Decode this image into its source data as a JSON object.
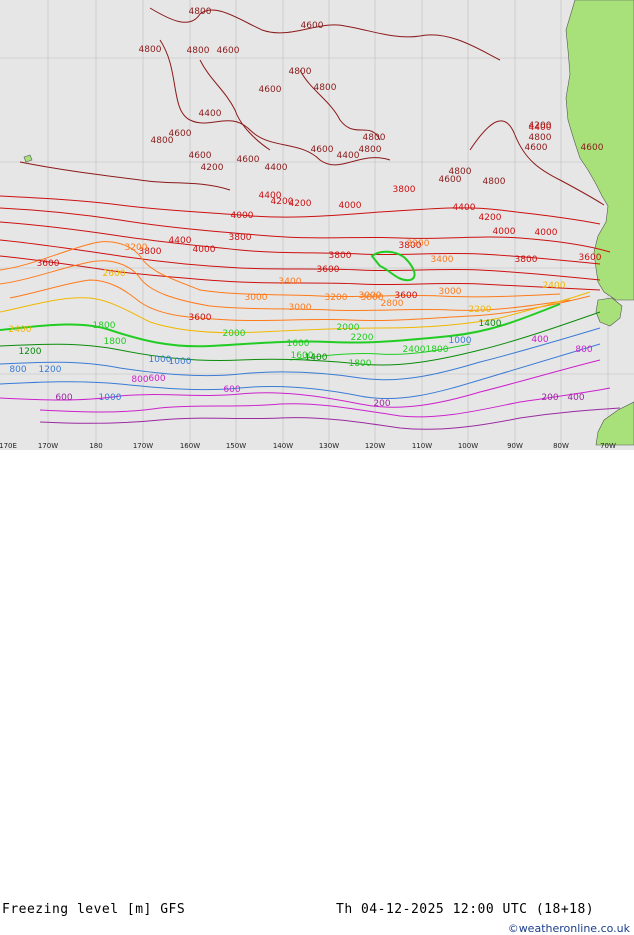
{
  "title": "Freezing level [m] GFS",
  "valid_time": "Th 04-12-2025 12:00 UTC (18+18)",
  "credit": "©weatheronline.co.uk",
  "longitude_labels": [
    "170E",
    "170W",
    "180",
    "170W",
    "160W",
    "150W",
    "140W",
    "130W",
    "120W",
    "110W",
    "100W",
    "90W",
    "80W",
    "70W"
  ],
  "colors": {
    "ocean": "#e6e6e6",
    "land": "#a8e07a",
    "c4800": "#8b1a1a",
    "c4000": "#cc1010",
    "c3000": "#ff7a1a",
    "c2400": "#f0b800",
    "c1800": "#22cc22",
    "c1200": "#0a8c0a",
    "c1000": "#3a7bd5",
    "c600": "#cc22cc",
    "c200": "#9a2aa0"
  },
  "contour_labels": [
    {
      "text": "4800",
      "c": "c4800"
    },
    {
      "text": "4600",
      "c": "c4800"
    },
    {
      "text": "4800",
      "c": "c4800"
    },
    {
      "text": "4800",
      "c": "c4800"
    },
    {
      "text": "4600",
      "c": "c4800"
    },
    {
      "text": "4800",
      "c": "c4800"
    },
    {
      "text": "4800",
      "c": "c4800"
    },
    {
      "text": "4600",
      "c": "c4800"
    },
    {
      "text": "4400",
      "c": "c4800"
    },
    {
      "text": "4600",
      "c": "c4800"
    },
    {
      "text": "4800",
      "c": "c4800"
    },
    {
      "text": "4800",
      "c": "c4800"
    },
    {
      "text": "4600",
      "c": "c4800"
    },
    {
      "text": "4600",
      "c": "c4800"
    },
    {
      "text": "4200",
      "c": "c4800"
    },
    {
      "text": "4400",
      "c": "c4800"
    },
    {
      "text": "4600",
      "c": "c4800"
    },
    {
      "text": "4800",
      "c": "c4800"
    },
    {
      "text": "4800",
      "c": "c4800"
    },
    {
      "text": "4800",
      "c": "c4800"
    },
    {
      "text": "4600",
      "c": "c4800"
    },
    {
      "text": "4400",
      "c": "c4800"
    },
    {
      "text": "4200",
      "c": "c4800"
    },
    {
      "text": "4800",
      "c": "c4800"
    },
    {
      "text": "4600",
      "c": "c4800"
    },
    {
      "text": "4600",
      "c": "c4800"
    },
    {
      "text": "4000",
      "c": "c4000"
    },
    {
      "text": "4200",
      "c": "c4000"
    },
    {
      "text": "4400",
      "c": "c4000"
    },
    {
      "text": "4400",
      "c": "c4000"
    },
    {
      "text": "4200",
      "c": "c4000"
    },
    {
      "text": "4000",
      "c": "c4000"
    },
    {
      "text": "4000",
      "c": "c4000"
    },
    {
      "text": "3800",
      "c": "c4000"
    },
    {
      "text": "3800",
      "c": "c4000"
    },
    {
      "text": "4400",
      "c": "c4000"
    },
    {
      "text": "4200",
      "c": "c4000"
    },
    {
      "text": "4000",
      "c": "c4000"
    },
    {
      "text": "3600",
      "c": "c4000"
    },
    {
      "text": "3800",
      "c": "c4000"
    },
    {
      "text": "3600",
      "c": "c4000"
    },
    {
      "text": "3800",
      "c": "c4000"
    },
    {
      "text": "3800",
      "c": "c4000"
    },
    {
      "text": "3800",
      "c": "c4000"
    },
    {
      "text": "3600",
      "c": "c4000"
    },
    {
      "text": "3600",
      "c": "c4000"
    },
    {
      "text": "3400",
      "c": "c3000"
    },
    {
      "text": "3200",
      "c": "c3000"
    },
    {
      "text": "3000",
      "c": "c3000"
    },
    {
      "text": "3000",
      "c": "c3000"
    },
    {
      "text": "3000",
      "c": "c3000"
    },
    {
      "text": "3200",
      "c": "c3000"
    },
    {
      "text": "3400",
      "c": "c3000"
    },
    {
      "text": "3000",
      "c": "c3000"
    },
    {
      "text": "3200",
      "c": "c3000"
    },
    {
      "text": "2800",
      "c": "c3000"
    },
    {
      "text": "2600",
      "c": "c2400"
    },
    {
      "text": "2400",
      "c": "c2400"
    },
    {
      "text": "2200",
      "c": "c2400"
    },
    {
      "text": "2000",
      "c": "c1800"
    },
    {
      "text": "1800",
      "c": "c1800"
    },
    {
      "text": "1600",
      "c": "c1800"
    },
    {
      "text": "2200",
      "c": "c1800"
    },
    {
      "text": "2000",
      "c": "c1800"
    },
    {
      "text": "1800",
      "c": "c1800"
    },
    {
      "text": "2400",
      "c": "c1800"
    },
    {
      "text": "1800",
      "c": "c1800"
    },
    {
      "text": "1600",
      "c": "c1800"
    },
    {
      "text": "1400",
      "c": "c1200"
    },
    {
      "text": "1200",
      "c": "c1200"
    },
    {
      "text": "1000",
      "c": "c1000"
    },
    {
      "text": "1200",
      "c": "c1000"
    },
    {
      "text": "1000",
      "c": "c1000"
    },
    {
      "text": "1000",
      "c": "c1000"
    },
    {
      "text": "800",
      "c": "c1000"
    },
    {
      "text": "800",
      "c": "c600"
    },
    {
      "text": "600",
      "c": "c600"
    },
    {
      "text": "800",
      "c": "c600"
    },
    {
      "text": "600",
      "c": "c600"
    },
    {
      "text": "400",
      "c": "c600"
    },
    {
      "text": "200",
      "c": "c200"
    },
    {
      "text": "200",
      "c": "c200"
    },
    {
      "text": "400",
      "c": "c200"
    },
    {
      "text": "600",
      "c": "c200"
    },
    {
      "text": "1000",
      "c": "c1000"
    },
    {
      "text": "1400",
      "c": "c1200"
    },
    {
      "text": "1800",
      "c": "c1800"
    },
    {
      "text": "2400",
      "c": "c2400"
    },
    {
      "text": "3000",
      "c": "c3000"
    },
    {
      "text": "4400",
      "c": "c4000"
    },
    {
      "text": "4000",
      "c": "c4000"
    },
    {
      "text": "3600",
      "c": "c4000"
    }
  ]
}
